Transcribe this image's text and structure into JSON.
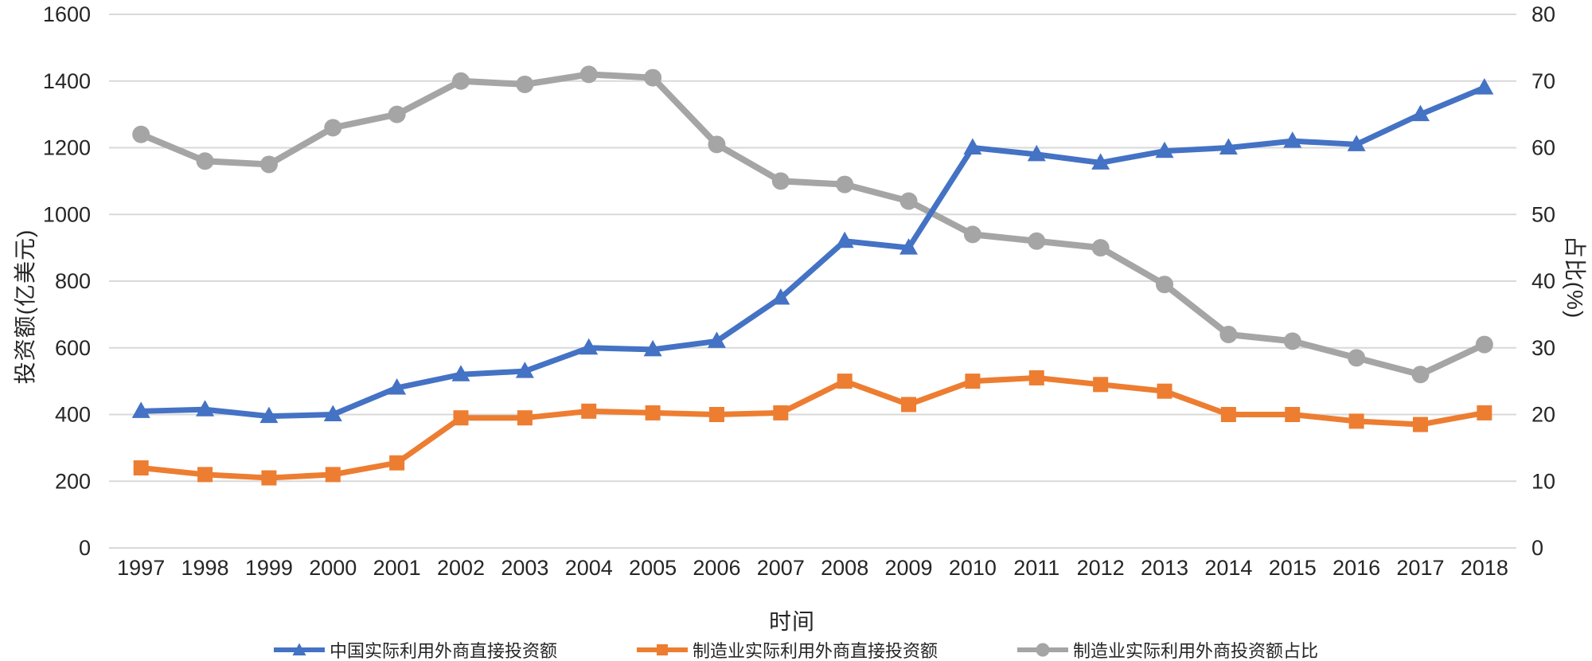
{
  "chart_data": {
    "type": "line",
    "title": "",
    "xlabel": "时间",
    "ylabel_left": "投资额(亿美元)",
    "ylabel_right": "占比(%)",
    "x": [
      1997,
      1998,
      1999,
      2000,
      2001,
      2002,
      2003,
      2004,
      2005,
      2006,
      2007,
      2008,
      2009,
      2010,
      2011,
      2012,
      2013,
      2014,
      2015,
      2016,
      2017,
      2018
    ],
    "ylim_left": [
      0,
      1600
    ],
    "ylim_right": [
      0,
      80
    ],
    "y_left_ticks": [
      0,
      200,
      400,
      600,
      800,
      1000,
      1200,
      1400,
      1600
    ],
    "y_right_ticks": [
      0,
      10,
      20,
      30,
      40,
      50,
      60,
      70,
      80
    ],
    "grid": true,
    "legend_position": "bottom",
    "series": [
      {
        "name": "中国实际利用外商直接投资额",
        "axis": "left",
        "marker": "triangle",
        "color": "#4472C4",
        "values": [
          410,
          415,
          395,
          400,
          480,
          520,
          530,
          600,
          595,
          620,
          750,
          920,
          900,
          1200,
          1180,
          1155,
          1190,
          1200,
          1220,
          1210,
          1300,
          1380
        ]
      },
      {
        "name": "制造业实际利用外商直接投资额",
        "axis": "left",
        "marker": "square",
        "color": "#ED7D31",
        "values": [
          240,
          220,
          210,
          220,
          255,
          390,
          390,
          410,
          405,
          400,
          405,
          500,
          430,
          500,
          510,
          490,
          470,
          400,
          400,
          380,
          370,
          405
        ]
      },
      {
        "name": "制造业实际利用外商投资额占比",
        "axis": "right",
        "marker": "circle",
        "color": "#A5A5A5",
        "values": [
          62,
          58,
          57.5,
          63,
          65,
          70,
          69.5,
          71,
          70.5,
          60.5,
          55,
          54.5,
          52,
          47,
          46,
          45,
          39.5,
          32,
          31,
          28.5,
          26,
          30.5
        ]
      }
    ]
  },
  "style": {
    "gridline_color": "#D9D9D9",
    "tick_label_color": "#262626",
    "background_color": "#FFFFFF"
  }
}
